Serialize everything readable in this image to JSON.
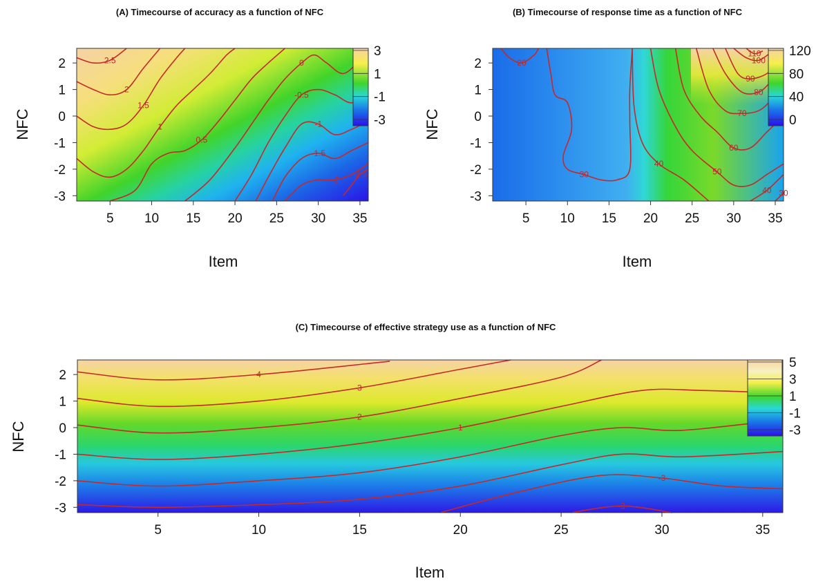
{
  "chart_data": [
    {
      "id": "A",
      "type": "heatmap",
      "title": "(A) Timecourse of accuracy as a function of NFC",
      "xlabel": "Item",
      "ylabel": "NFC",
      "xlim": [
        1,
        36
      ],
      "ylim": [
        -3.2,
        2.55
      ],
      "xticks": [
        5,
        10,
        15,
        20,
        25,
        30,
        35
      ],
      "yticks": [
        2,
        1,
        0,
        -1,
        -2,
        -3
      ],
      "zlim": [
        -3,
        3
      ],
      "legend_labels": [
        "3",
        "1",
        "-1",
        "-3"
      ],
      "legend_values": [
        3,
        1,
        -1,
        -3
      ],
      "contours": [
        {
          "label": "2.5",
          "points": [
            [
              1,
              2.2
            ],
            [
              3,
              2.0
            ],
            [
              5,
              2.1
            ],
            [
              7,
              2.55
            ]
          ]
        },
        {
          "label": "2",
          "points": [
            [
              1,
              1.3
            ],
            [
              3,
              1.0
            ],
            [
              5,
              0.8
            ],
            [
              7,
              1.0
            ],
            [
              9,
              1.8
            ],
            [
              11,
              2.55
            ]
          ]
        },
        {
          "label": "1.5",
          "points": [
            [
              1,
              0.0
            ],
            [
              3,
              -0.4
            ],
            [
              5,
              -0.5
            ],
            [
              7,
              -0.3
            ],
            [
              9,
              0.4
            ],
            [
              11,
              1.4
            ],
            [
              13,
              2.2
            ],
            [
              14,
              2.55
            ]
          ]
        },
        {
          "label": "1",
          "points": [
            [
              1,
              -1.6
            ],
            [
              3,
              -2.1
            ],
            [
              5,
              -2.3
            ],
            [
              7,
              -2.0
            ],
            [
              9,
              -1.3
            ],
            [
              11,
              -0.4
            ],
            [
              13,
              0.4
            ],
            [
              15,
              1.0
            ],
            [
              17,
              1.6
            ],
            [
              19,
              2.3
            ],
            [
              20,
              2.55
            ]
          ]
        },
        {
          "label": "0.5",
          "points": [
            [
              5,
              -3.2
            ],
            [
              8,
              -2.8
            ],
            [
              10,
              -1.8
            ],
            [
              12,
              -1.4
            ],
            [
              14,
              -1.3
            ],
            [
              16,
              -0.9
            ],
            [
              18,
              -0.2
            ],
            [
              20,
              0.6
            ],
            [
              22,
              1.4
            ],
            [
              24,
              2.0
            ],
            [
              26,
              2.55
            ]
          ]
        },
        {
          "label": "0",
          "points": [
            [
              14,
              -3.2
            ],
            [
              17,
              -2.4
            ],
            [
              20,
              -1.2
            ],
            [
              22,
              -0.3
            ],
            [
              24,
              0.6
            ],
            [
              26,
              1.4
            ],
            [
              28,
              2.0
            ],
            [
              29.5,
              2.3
            ],
            [
              31,
              2.0
            ],
            [
              33,
              1.6
            ],
            [
              35,
              2.1
            ],
            [
              36,
              2.3
            ]
          ]
        },
        {
          "label": "-0.5",
          "points": [
            [
              20,
              -3.2
            ],
            [
              22,
              -2.2
            ],
            [
              24,
              -1.0
            ],
            [
              26,
              0.0
            ],
            [
              28,
              0.8
            ],
            [
              30,
              1.0
            ],
            [
              32,
              0.8
            ],
            [
              34,
              0.5
            ],
            [
              36,
              0.9
            ]
          ]
        },
        {
          "label": "-1",
          "points": [
            [
              22.5,
              -3.2
            ],
            [
              24,
              -2.3
            ],
            [
              26,
              -1.2
            ],
            [
              28,
              -0.3
            ],
            [
              30,
              -0.3
            ],
            [
              32,
              -0.7
            ],
            [
              34,
              -0.5
            ],
            [
              36,
              -0.2
            ]
          ]
        },
        {
          "label": "-1.5",
          "points": [
            [
              24.5,
              -3.2
            ],
            [
              26,
              -2.3
            ],
            [
              28,
              -1.6
            ],
            [
              30,
              -1.4
            ],
            [
              32,
              -1.6
            ],
            [
              34,
              -1.3
            ],
            [
              36,
              -1.0
            ]
          ]
        },
        {
          "label": "-2",
          "points": [
            [
              26,
              -3.2
            ],
            [
              28,
              -2.6
            ],
            [
              30,
              -2.4
            ],
            [
              32,
              -2.4
            ],
            [
              34,
              -2.2
            ],
            [
              36,
              -1.8
            ]
          ]
        },
        {
          "label": "-2.5",
          "points": [
            [
              33,
              -3.0
            ],
            [
              34,
              -2.6
            ],
            [
              35,
              -2.2
            ],
            [
              36,
              -2.0
            ]
          ]
        }
      ]
    },
    {
      "id": "B",
      "type": "heatmap",
      "title": "(B) Timecourse of response time as a function of NFC",
      "xlabel": "Item",
      "ylabel": "NFC",
      "xlim": [
        1,
        36
      ],
      "ylim": [
        -3.2,
        2.55
      ],
      "xticks": [
        5,
        10,
        15,
        20,
        25,
        30,
        35
      ],
      "yticks": [
        2,
        1,
        0,
        -1,
        -2,
        -3
      ],
      "zlim": [
        0,
        120
      ],
      "legend_labels": [
        "120",
        "80",
        "40",
        "0"
      ],
      "legend_values": [
        120,
        80,
        40,
        0
      ],
      "contours": [
        {
          "label": "20",
          "points": [
            [
              2,
              2.55
            ],
            [
              3,
              2.2
            ],
            [
              4.5,
              2.0
            ],
            [
              6,
              2.3
            ],
            [
              6.5,
              2.55
            ]
          ]
        },
        {
          "label": "30",
          "points": [
            [
              7.5,
              2.55
            ],
            [
              8,
              1.6
            ],
            [
              8.5,
              0.8
            ],
            [
              10,
              0.5
            ],
            [
              10.5,
              -0.5
            ],
            [
              9.5,
              -1.5
            ],
            [
              10,
              -2.0
            ],
            [
              12,
              -2.2
            ],
            [
              14,
              -2.4
            ],
            [
              16,
              -2.4
            ],
            [
              17.5,
              -2.0
            ],
            [
              17.5,
              -0.2
            ],
            [
              17.5,
              1.0
            ],
            [
              17.8,
              2.55
            ]
          ]
        },
        {
          "label": "40",
          "points": [
            [
              17.8,
              2.55
            ],
            [
              18,
              0.4
            ],
            [
              19,
              -1.0
            ],
            [
              21,
              -1.8
            ],
            [
              24,
              -2.4
            ],
            [
              27,
              -3.2
            ]
          ]
        },
        {
          "label": "50",
          "points": [
            [
              20,
              2.55
            ],
            [
              21,
              1.0
            ],
            [
              23,
              -0.4
            ],
            [
              25,
              -1.3
            ],
            [
              28,
              -2.1
            ],
            [
              30,
              -2.6
            ],
            [
              32,
              -2.6
            ],
            [
              34,
              -2.2
            ],
            [
              36,
              -1.8
            ]
          ]
        },
        {
          "label": "60",
          "points": [
            [
              23,
              2.55
            ],
            [
              24,
              1.0
            ],
            [
              26,
              0.0
            ],
            [
              28,
              -0.6
            ],
            [
              30,
              -1.2
            ],
            [
              32,
              -1.2
            ],
            [
              34,
              -0.6
            ],
            [
              36,
              0.0
            ]
          ]
        },
        {
          "label": "70",
          "points": [
            [
              25.5,
              2.55
            ],
            [
              27,
              1.0
            ],
            [
              29,
              0.2
            ],
            [
              31,
              0.1
            ],
            [
              33,
              0.2
            ],
            [
              34.5,
              0.6
            ],
            [
              36,
              1.2
            ]
          ]
        },
        {
          "label": "80",
          "points": [
            [
              27.5,
              2.55
            ],
            [
              29,
              1.6
            ],
            [
              31,
              0.9
            ],
            [
              33,
              0.9
            ],
            [
              34.5,
              1.3
            ],
            [
              36,
              1.8
            ]
          ]
        },
        {
          "label": "90",
          "points": [
            [
              29,
              2.55
            ],
            [
              30.5,
              1.6
            ],
            [
              32,
              1.4
            ],
            [
              34,
              1.6
            ],
            [
              35,
              2.0
            ]
          ]
        },
        {
          "label": "100",
          "points": [
            [
              30,
              2.55
            ],
            [
              31.5,
              2.2
            ],
            [
              33,
              2.1
            ],
            [
              34.5,
              2.4
            ]
          ]
        },
        {
          "label": "110",
          "points": [
            [
              31.5,
              2.55
            ],
            [
              32.5,
              2.35
            ],
            [
              33.5,
              2.45
            ]
          ]
        },
        {
          "label": "40",
          "points": [
            [
              32,
              -3.2
            ],
            [
              34,
              -2.8
            ],
            [
              36,
              -2.2
            ]
          ]
        },
        {
          "label": "30",
          "points": [
            [
              35,
              -3.2
            ],
            [
              36,
              -2.9
            ]
          ]
        }
      ]
    },
    {
      "id": "C",
      "type": "heatmap",
      "title": "(C) Timecourse of effective strategy use as a function of NFC",
      "xlabel": "Item",
      "ylabel": "NFC",
      "xlim": [
        1,
        36
      ],
      "ylim": [
        -3.2,
        2.55
      ],
      "xticks": [
        5,
        10,
        15,
        20,
        25,
        30,
        35
      ],
      "yticks": [
        2,
        1,
        0,
        -1,
        -2,
        -3
      ],
      "zlim": [
        -3,
        5
      ],
      "legend_labels": [
        "5",
        "3",
        "1",
        "-1",
        "-3"
      ],
      "legend_values": [
        5,
        3,
        1,
        -1,
        -3
      ],
      "contours": [
        {
          "label": "4",
          "points": [
            [
              1,
              2.1
            ],
            [
              5,
              1.8
            ],
            [
              10,
              2.0
            ],
            [
              16.5,
              2.5
            ]
          ]
        },
        {
          "label": "3",
          "points": [
            [
              1,
              1.1
            ],
            [
              5,
              0.8
            ],
            [
              10,
              1.0
            ],
            [
              15,
              1.5
            ],
            [
              20,
              2.2
            ],
            [
              22.5,
              2.55
            ]
          ]
        },
        {
          "label": "2",
          "points": [
            [
              1,
              0.1
            ],
            [
              5,
              -0.2
            ],
            [
              10,
              0.0
            ],
            [
              15,
              0.4
            ],
            [
              20,
              1.1
            ],
            [
              25,
              1.9
            ],
            [
              27,
              2.55
            ]
          ]
        },
        {
          "label": "1",
          "points": [
            [
              1,
              -1.0
            ],
            [
              5,
              -1.2
            ],
            [
              10,
              -1.0
            ],
            [
              15,
              -0.6
            ],
            [
              20,
              0.0
            ],
            [
              25,
              0.8
            ],
            [
              29,
              1.4
            ],
            [
              32,
              1.4
            ],
            [
              36,
              1.3
            ]
          ]
        },
        {
          "label": "",
          "points": [
            [
              1,
              -2.0
            ],
            [
              5,
              -2.2
            ],
            [
              10,
              -2.0
            ],
            [
              15,
              -1.7
            ],
            [
              20,
              -1.1
            ],
            [
              25,
              -0.3
            ],
            [
              28,
              0.0
            ],
            [
              31,
              -0.1
            ],
            [
              36,
              0.3
            ]
          ]
        },
        {
          "label": "",
          "points": [
            [
              1,
              -2.9
            ],
            [
              5,
              -3.0
            ],
            [
              10,
              -2.9
            ],
            [
              15,
              -2.7
            ],
            [
              20,
              -2.2
            ],
            [
              25,
              -1.4
            ],
            [
              28,
              -1.0
            ],
            [
              31,
              -1.1
            ],
            [
              36,
              -0.9
            ]
          ]
        },
        {
          "label": "-3",
          "points": [
            [
              19,
              -3.2
            ],
            [
              23,
              -2.4
            ],
            [
              27,
              -1.8
            ],
            [
              30,
              -1.9
            ],
            [
              33,
              -2.2
            ],
            [
              36,
              -2.3
            ]
          ]
        },
        {
          "label": "-3",
          "points": [
            [
              25.5,
              -3.2
            ],
            [
              28,
              -2.95
            ],
            [
              30.5,
              -3.2
            ]
          ]
        }
      ]
    }
  ]
}
